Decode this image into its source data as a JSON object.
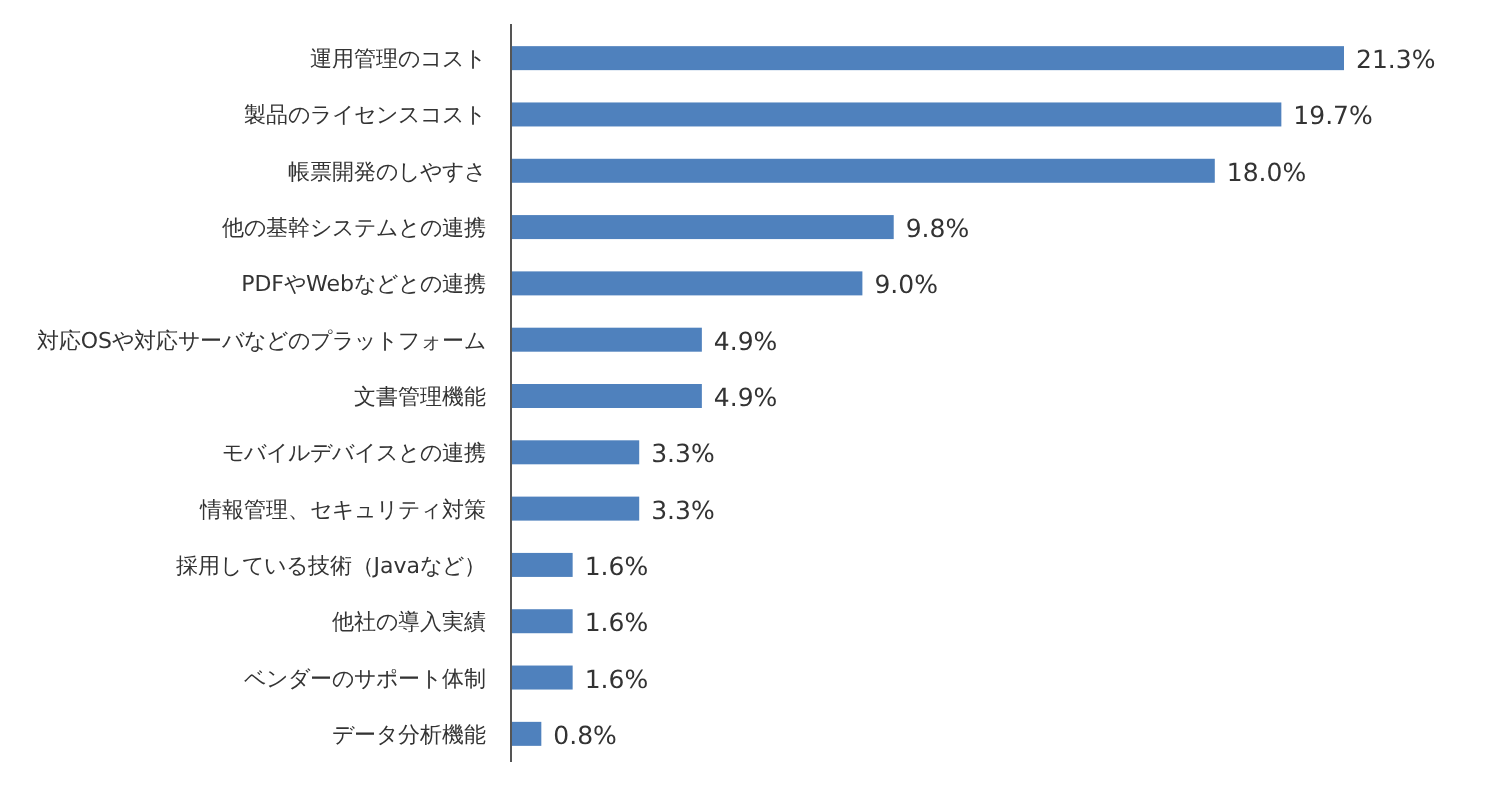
{
  "chart_data": {
    "type": "bar",
    "orientation": "horizontal",
    "categories": [
      "運用管理のコスト",
      "製品のライセンスコスト",
      "帳票開発のしやすさ",
      "他の基幹システムとの連携",
      "PDFやWebなどとの連携",
      "対応OSや対応サーバなどのプラットフォーム",
      "文書管理機能",
      "モバイルデバイスとの連携",
      "情報管理、セキュリティ対策",
      "採用している技術（Javaなど）",
      "他社の導入実績",
      "ベンダーのサポート体制",
      "データ分析機能"
    ],
    "values": [
      21.3,
      19.7,
      18.0,
      9.8,
      9.0,
      4.9,
      4.9,
      3.3,
      3.3,
      1.6,
      1.6,
      1.6,
      0.8
    ],
    "value_labels": [
      "21.3%",
      "19.7%",
      "18.0%",
      "9.8%",
      "9.0%",
      "4.9%",
      "4.9%",
      "3.3%",
      "3.3%",
      "1.6%",
      "1.6%",
      "1.6%",
      "0.8%"
    ],
    "color": "#4f81bd"
  }
}
